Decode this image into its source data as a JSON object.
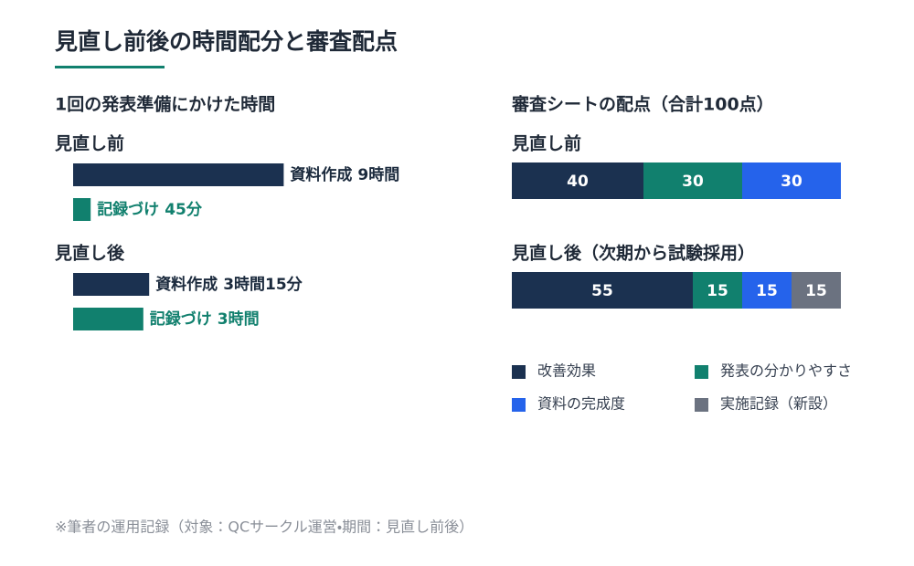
{
  "title": "見直し前後の時間配分と審査配点",
  "footnote": "※筆者の運用記録（対象：QCサークル運営・期間：見直し前後）",
  "chart_data": [
    {
      "type": "hbar",
      "title": "1回の発表準備にかけた時間",
      "categories": [
        "見直し前",
        "見直し後"
      ],
      "series": [
        {
          "name": "資料作成",
          "color": "#1b3150",
          "label_color": "#1b2a3d",
          "values": [
            9,
            3.25
          ],
          "value_labels": [
            "9時間",
            "3時間15分"
          ]
        },
        {
          "name": "記録づけ",
          "color": "#11806e",
          "label_color": "#11806e",
          "values": [
            0.75,
            3
          ],
          "value_labels": [
            "45分",
            "3時間"
          ]
        }
      ]
    },
    {
      "type": "stacked",
      "title": "審査シートの配点（合計100点）",
      "categories": [
        "見直し前",
        "見直し後（次期から試験採用）"
      ],
      "xlim": [
        0,
        100
      ],
      "series": [
        {
          "name": "改善効果",
          "color": "#1b3150",
          "values": [
            40,
            55
          ]
        },
        {
          "name": "発表の分かりやすさ",
          "color": "#11806e",
          "values": [
            30,
            15
          ]
        },
        {
          "name": "資料の完成度",
          "color": "#2563eb",
          "values": [
            30,
            15
          ]
        },
        {
          "name": "実施記録（新設）",
          "color": "#6b7280",
          "values": [
            null,
            15
          ]
        }
      ]
    }
  ]
}
